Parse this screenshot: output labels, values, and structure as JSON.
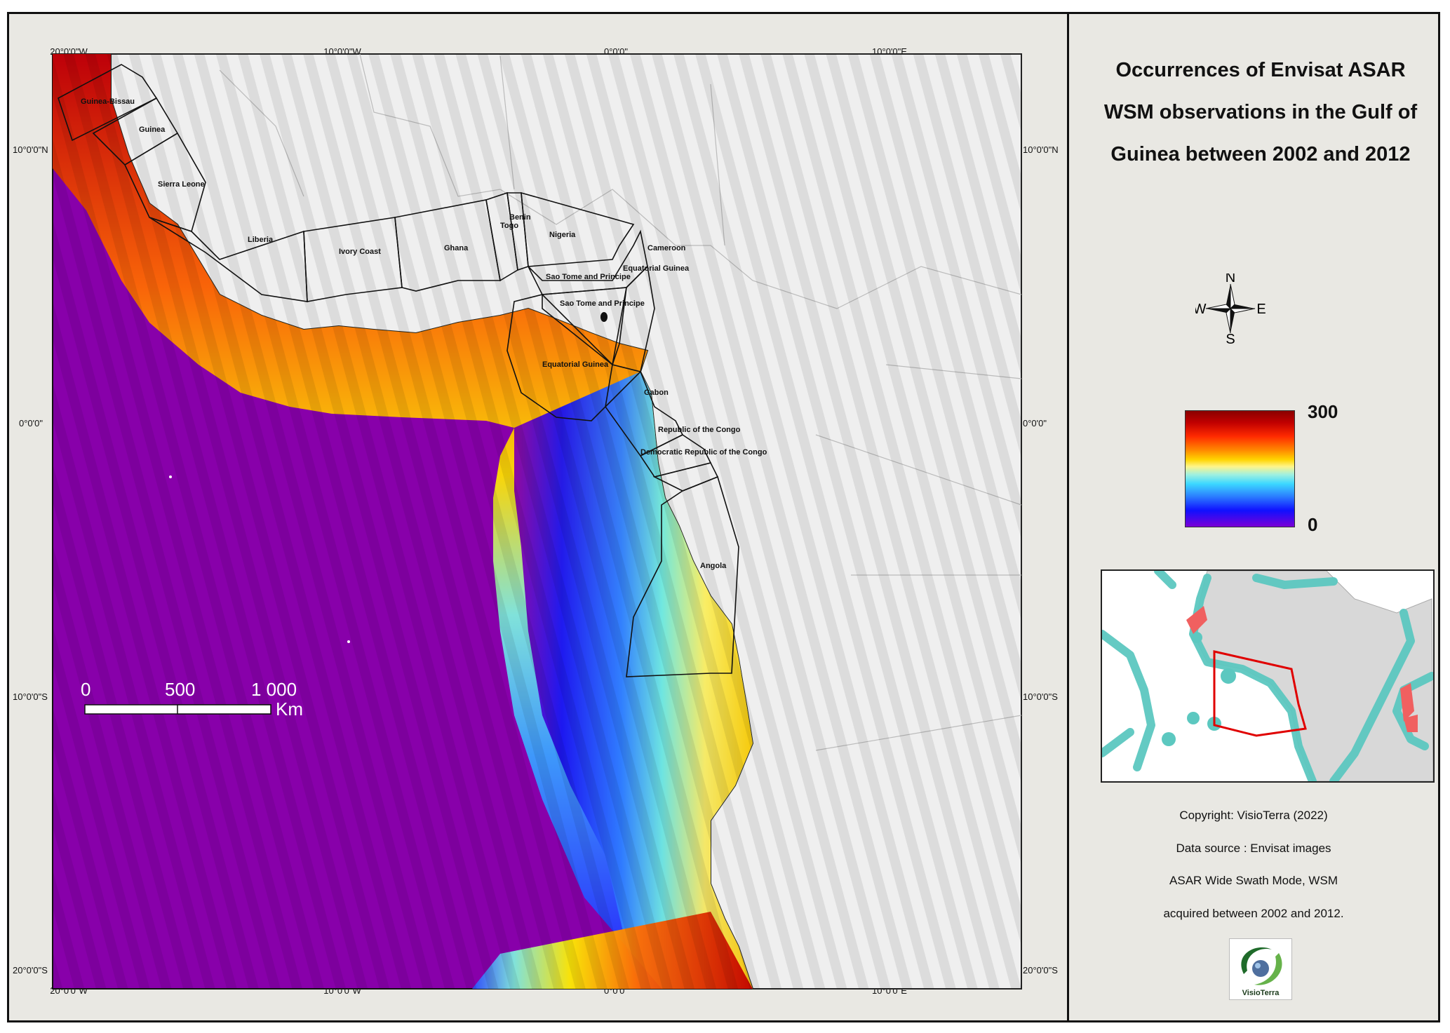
{
  "title": "Occurrences of Envisat ASAR WSM observations in the Gulf of Guinea between 2002 and 2012",
  "graticule": {
    "top_lon": [
      "20°0'0\"W",
      "10°0'0\"W",
      "0°0'0\"",
      "10°0'0\"E"
    ],
    "bottom_lon": [
      "20°0'0\"W",
      "10°0'0\"W",
      "0°0'0\"",
      "10°0'0\"E"
    ],
    "left_lat": [
      "10°0'0\"N",
      "0°0'0\"",
      "10°0'0\"S",
      "20°0'0\"S"
    ],
    "right_lat": [
      "10°0'0\"N",
      "0°0'0\"",
      "10°0'0\"S",
      "20°0'0\"S"
    ]
  },
  "eez_labels": [
    "Guinea-Bissau",
    "Guinea",
    "Sierra Leone",
    "Liberia",
    "Ivory Coast",
    "Ghana",
    "Togo",
    "Benin",
    "Nigeria",
    "Cameroon",
    "Equatorial Guinea",
    "Sao Tome and Principe",
    "Sao Tome and Principe",
    "Equatorial Guinea",
    "Gabon",
    "Republic of the Congo",
    "Democratic Republic of the Congo",
    "Angola"
  ],
  "scale_bar": {
    "ticks": [
      "0",
      "500",
      "1 000"
    ],
    "unit": "Km"
  },
  "compass": {
    "n": "N",
    "s": "S",
    "e": "E",
    "w": "W"
  },
  "colorbar": {
    "max": "300",
    "min": "0"
  },
  "credits": {
    "copyright": "Copyright: VisioTerra (2022)",
    "source": "Data source : Envisat images",
    "mode": "ASAR Wide Swath Mode, WSM",
    "period": "acquired between 2002 and 2012."
  },
  "logo_text": "VisioTerra",
  "colors": {
    "ocean_low": "#8800aa",
    "land": "#efefef",
    "high": "#c00000",
    "inset_coverage": "#5cc8c0",
    "inset_highlight": "#f06060",
    "inset_box": "#e00000"
  }
}
